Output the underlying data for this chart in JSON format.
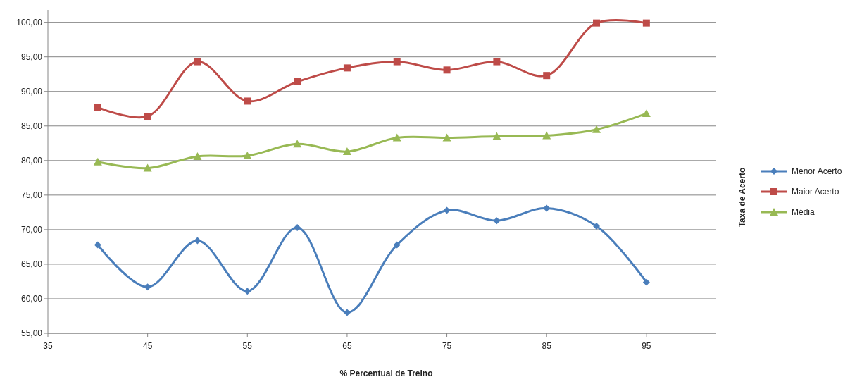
{
  "chart_data": {
    "type": "line",
    "xlabel": "% Percentual de Treino",
    "ylabel": "Taxa de Acerto",
    "x": [
      40,
      45,
      50,
      55,
      60,
      65,
      70,
      75,
      80,
      85,
      90,
      95
    ],
    "xlim": [
      35,
      102
    ],
    "xticks": [
      35,
      45,
      55,
      65,
      75,
      85,
      95
    ],
    "ylim": [
      55,
      101.8
    ],
    "yticks": [
      {
        "value": 55,
        "label": "55,00"
      },
      {
        "value": 60,
        "label": "60,00"
      },
      {
        "value": 65,
        "label": "65,00"
      },
      {
        "value": 70,
        "label": "70,00"
      },
      {
        "value": 75,
        "label": "75,00"
      },
      {
        "value": 80,
        "label": "80,00"
      },
      {
        "value": 85,
        "label": "85,00"
      },
      {
        "value": 90,
        "label": "90,00"
      },
      {
        "value": 95,
        "label": "95,00"
      },
      {
        "value": 100,
        "label": "100,00"
      }
    ],
    "grid": "y",
    "legend": "right",
    "line_style": "solid",
    "series": [
      {
        "name": "Menor Acerto",
        "color": "#4a7ebb",
        "marker": "diamond",
        "values": [
          67.8,
          61.7,
          68.4,
          61.1,
          70.3,
          58.0,
          67.8,
          72.8,
          71.3,
          73.1,
          70.5,
          62.4
        ]
      },
      {
        "name": "Maior Acerto",
        "color": "#be4b48",
        "marker": "square",
        "values": [
          87.7,
          86.4,
          94.3,
          88.6,
          91.4,
          93.4,
          94.3,
          93.1,
          94.3,
          92.3,
          99.9,
          99.9
        ]
      },
      {
        "name": "Média",
        "color": "#98b954",
        "marker": "triangle",
        "values": [
          79.8,
          78.9,
          80.6,
          80.7,
          82.4,
          81.3,
          83.3,
          83.3,
          83.5,
          83.6,
          84.5,
          86.8
        ]
      }
    ]
  }
}
